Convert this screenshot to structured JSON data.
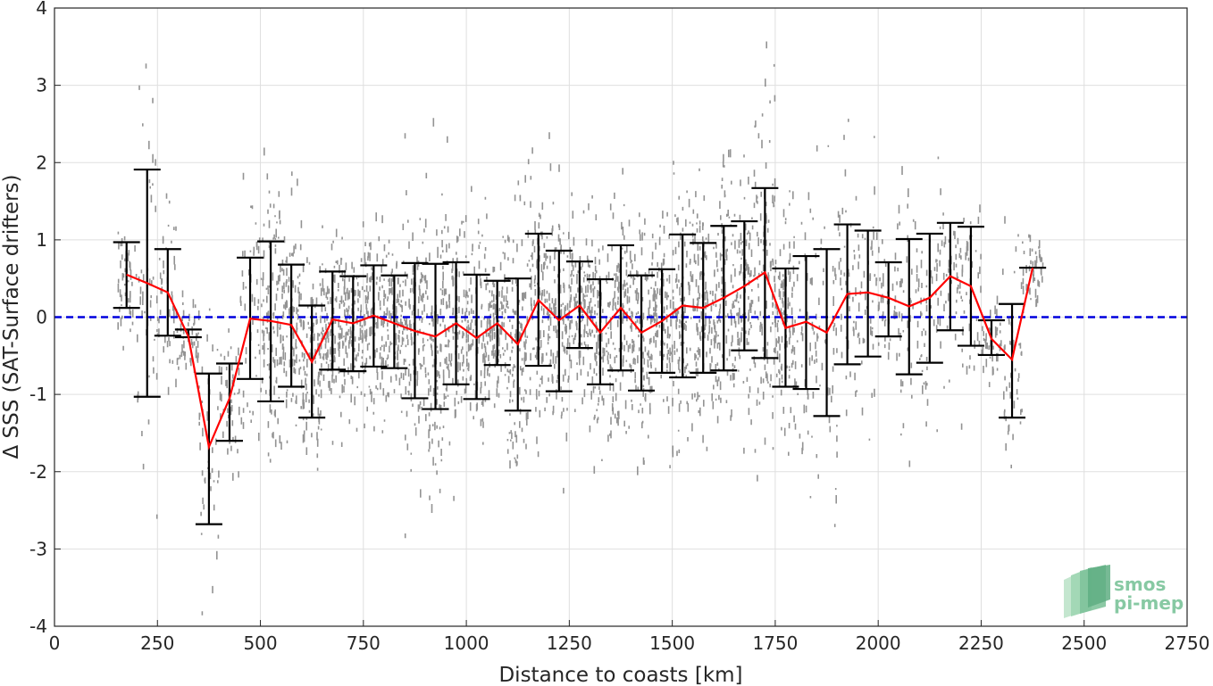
{
  "chart_data": {
    "type": "line",
    "title": "",
    "xlabel": "Distance to coasts [km]",
    "ylabel": "Δ SSS (SAT-Surface drifters)",
    "xlim": [
      0,
      2750
    ],
    "ylim": [
      -4,
      4
    ],
    "xticks": [
      "0",
      "250",
      "500",
      "750",
      "1000",
      "1250",
      "1500",
      "1750",
      "2000",
      "2250",
      "2500",
      "2750"
    ],
    "yticks": [
      "4",
      "3",
      "2",
      "1",
      "0",
      "-1",
      "-2",
      "-3",
      "-4"
    ],
    "grid": true,
    "legend": "none",
    "zero_line": {
      "y": 0,
      "color": "#0000dd",
      "style": "dashed"
    },
    "scatter_color": "#808080",
    "mean_color": "#ff0000",
    "errorbar_color": "#000000",
    "series": [
      {
        "type": "line",
        "x": [
          175,
          225,
          275,
          325,
          375,
          425,
          475,
          525,
          575,
          625,
          675,
          725,
          775,
          825,
          875,
          925,
          975,
          1025,
          1075,
          1125,
          1175,
          1225,
          1275,
          1325,
          1375,
          1425,
          1475,
          1525,
          1575,
          1625,
          1675,
          1725,
          1775,
          1825,
          1875,
          1925,
          1975,
          2025,
          2075,
          2125,
          2175,
          2225,
          2275,
          2325,
          2375
        ],
        "y": [
          0.55,
          0.44,
          0.32,
          -0.25,
          -1.68,
          -1.05,
          -0.02,
          -0.05,
          -0.1,
          -0.58,
          -0.03,
          -0.08,
          0.02,
          -0.08,
          -0.18,
          -0.25,
          -0.08,
          -0.27,
          -0.08,
          -0.35,
          0.22,
          -0.04,
          0.15,
          -0.2,
          0.12,
          -0.2,
          -0.05,
          0.15,
          0.12,
          0.25,
          0.4,
          0.58,
          -0.14,
          -0.06,
          -0.2,
          0.3,
          0.32,
          0.25,
          0.14,
          0.25,
          0.53,
          0.4,
          -0.28,
          -0.55,
          0.64
        ],
        "upper": [
          0.97,
          1.91,
          0.88,
          -0.16,
          -0.73,
          -0.6,
          0.77,
          0.98,
          0.68,
          0.15,
          0.59,
          0.53,
          0.67,
          0.54,
          0.7,
          0.69,
          0.71,
          0.55,
          0.47,
          0.5,
          1.08,
          0.86,
          0.72,
          0.49,
          0.93,
          0.54,
          0.62,
          1.07,
          0.96,
          1.18,
          1.24,
          1.67,
          0.63,
          0.79,
          0.88,
          1.2,
          1.12,
          0.71,
          1.01,
          1.08,
          1.22,
          1.17,
          -0.04,
          0.17,
          0.64
        ],
        "lower": [
          0.12,
          -1.03,
          -0.24,
          -0.26,
          -2.68,
          -1.6,
          -0.8,
          -1.09,
          -0.9,
          -1.3,
          -0.68,
          -0.7,
          -0.64,
          -0.66,
          -1.05,
          -1.19,
          -0.87,
          -1.06,
          -0.62,
          -1.21,
          -0.63,
          -0.96,
          -0.4,
          -0.87,
          -0.69,
          -0.95,
          -0.72,
          -0.78,
          -0.72,
          -0.69,
          -0.43,
          -0.53,
          -0.9,
          -0.93,
          -1.28,
          -0.61,
          -0.51,
          -0.25,
          -0.74,
          -0.59,
          -0.17,
          -0.37,
          -0.49,
          -1.3,
          0.64
        ]
      }
    ]
  },
  "logo": {
    "line1": "smos",
    "line2": "pi-mep"
  }
}
